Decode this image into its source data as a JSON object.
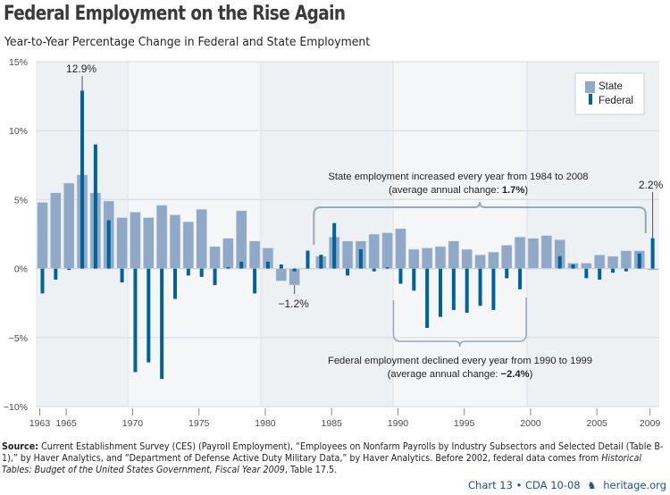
{
  "header": {
    "title": "Federal Employment on the Rise Again",
    "subtitle": "Year-to-Year Percentage Change in Federal and State Employment"
  },
  "chart_data": {
    "type": "bar",
    "title": "Federal Employment on the Rise Again",
    "subtitle": "Year-to-Year Percentage Change in Federal and State Employment",
    "xlabel": "",
    "ylabel": "",
    "ylim": [
      -10,
      15
    ],
    "yticks": [
      15,
      10,
      5,
      0,
      -5,
      -10
    ],
    "ytick_labels": [
      "15%",
      "10%",
      "5%",
      "0%",
      "−5%",
      "−10%"
    ],
    "xtick_years": [
      1963,
      1965,
      1970,
      1975,
      1980,
      1985,
      1990,
      1995,
      2000,
      2005,
      2009
    ],
    "xtick_labels": [
      "1963",
      "1965",
      "1970",
      "1975",
      "1980",
      "1985",
      "1990",
      "1995",
      "2000",
      "2005",
      "2009"
    ],
    "grid": true,
    "legend": {
      "placement": "top-right",
      "entries": [
        "State",
        "Federal"
      ]
    },
    "categories": [
      1963,
      1964,
      1965,
      1966,
      1967,
      1968,
      1969,
      1970,
      1971,
      1972,
      1973,
      1974,
      1975,
      1976,
      1977,
      1978,
      1979,
      1980,
      1981,
      1982,
      1983,
      1984,
      1985,
      1986,
      1987,
      1988,
      1989,
      1990,
      1991,
      1992,
      1993,
      1994,
      1995,
      1996,
      1997,
      1998,
      1999,
      2000,
      2001,
      2002,
      2003,
      2004,
      2005,
      2006,
      2007,
      2008,
      2009
    ],
    "series": [
      {
        "name": "State",
        "color": "#8fa9c6",
        "values": [
          4.8,
          5.5,
          6.2,
          6.8,
          5.5,
          4.9,
          3.7,
          4.1,
          3.7,
          4.6,
          3.9,
          3.4,
          4.3,
          1.6,
          2.2,
          4.2,
          2.0,
          1.5,
          -0.9,
          -1.2,
          0.0,
          0.9,
          2.3,
          2.0,
          2.0,
          2.5,
          2.6,
          2.9,
          1.4,
          1.5,
          1.6,
          2.0,
          1.4,
          1.0,
          1.2,
          1.7,
          2.3,
          2.2,
          2.4,
          2.1,
          0.4,
          0.4,
          1.0,
          0.9,
          1.3,
          1.3,
          -0.1
        ]
      },
      {
        "name": "Federal",
        "color": "#00629b",
        "values": [
          -1.8,
          -0.8,
          -0.1,
          12.9,
          9.0,
          3.5,
          -1.0,
          -7.5,
          -6.8,
          -8.0,
          -2.2,
          -0.5,
          -0.6,
          -1.2,
          0.1,
          0.5,
          -1.8,
          0.5,
          0.3,
          -0.2,
          1.3,
          1.0,
          3.3,
          -0.5,
          1.4,
          -0.2,
          0.1,
          -1.1,
          -1.6,
          -4.3,
          -3.5,
          -3.0,
          -3.2,
          -2.7,
          -3.0,
          -0.7,
          -1.5,
          0.0,
          0.0,
          0.9,
          0.3,
          -0.7,
          -0.8,
          -0.3,
          -0.2,
          1.1,
          2.2
        ]
      }
    ],
    "annotations": [
      {
        "name": "federal-peak-label",
        "text": "12.9%",
        "year": 1966,
        "value": 12.9
      },
      {
        "name": "state-low-label",
        "text": "−1.2%",
        "year": 1982,
        "value": -1.2
      },
      {
        "name": "federal-2009-label",
        "text": "2.2%",
        "year": 2009,
        "value": 2.2
      },
      {
        "name": "state-increase-bracket",
        "from": 1984,
        "to": 2008,
        "line1": "State employment increased every year from 1984 to 2008",
        "line2_prefix": "(average annual change: ",
        "line2_value": "1.7%",
        "line2_suffix": ")"
      },
      {
        "name": "federal-decline-bracket",
        "from": 1990,
        "to": 1999,
        "line1": "Federal employment declined every year from 1990 to 1999",
        "line2_prefix": "(average annual change: ",
        "line2_value": "−2.4%",
        "line2_suffix": ")"
      }
    ]
  },
  "source": {
    "label": "Source:",
    "text_1": " Current Establishment Survey (CES) (Payroll Employment), “Employees on Nonfarm Payrolls by Industry Subsectors and Selected Detail (Table B-1),” by Haver Analytics, and “Department of Defense Active Duty Military Data,” by Haver Analytics. Before 2002, federal data comes from ",
    "italic": "Historical Tables: Budget of the United States Government, Fiscal Year 2009",
    "text_2": ", Table 17.5."
  },
  "footer": {
    "chart_id": "Chart 13 • CDA 10-08",
    "bell_icon": "liberty-bell-icon",
    "site": "heritage.org"
  },
  "colors": {
    "state": "#8fa9c6",
    "federal": "#00629b",
    "band_dark": "#edf1f4",
    "band_light": "#f4f6f8",
    "grid": "#d9dee3",
    "bracket": "#98a8b5"
  }
}
